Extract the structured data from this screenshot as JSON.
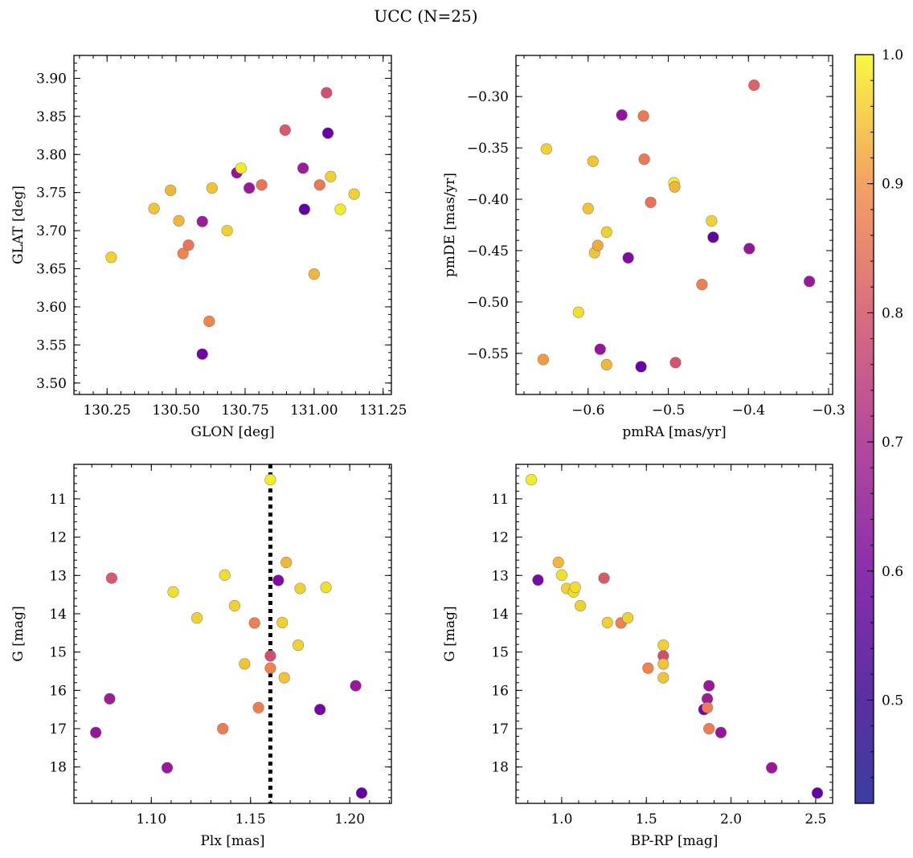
{
  "figure": {
    "title": "UCC (N=25)"
  },
  "colorbar": {
    "min": 0.42,
    "max": 1.0,
    "colormap": "plasma",
    "ticks": [
      0.5,
      0.6,
      0.7,
      0.8,
      0.9,
      1.0
    ],
    "tick_labels": [
      "0.5",
      "0.6",
      "0.7",
      "0.8",
      "0.9",
      "1.0"
    ]
  },
  "chart_data": [
    {
      "type": "scatter",
      "xlabel": "GLON [deg]",
      "ylabel": "GLAT [deg]",
      "xlim": [
        130.13,
        131.28
      ],
      "ylim": [
        3.485,
        3.93
      ],
      "xticks": [
        130.25,
        130.5,
        130.75,
        131.0,
        131.25
      ],
      "xtick_labels": [
        "130.25",
        "130.50",
        "130.75",
        "131.00",
        "131.25"
      ],
      "yticks": [
        3.5,
        3.55,
        3.6,
        3.65,
        3.7,
        3.75,
        3.8,
        3.85,
        3.9
      ],
      "ytick_labels": [
        "3.50",
        "3.55",
        "3.60",
        "3.65",
        "3.70",
        "3.75",
        "3.80",
        "3.85",
        "3.90"
      ],
      "points": [
        {
          "x": 130.265,
          "y": 3.665,
          "c": 0.97
        },
        {
          "x": 130.42,
          "y": 3.729,
          "c": 0.96
        },
        {
          "x": 130.48,
          "y": 3.753,
          "c": 0.95
        },
        {
          "x": 130.51,
          "y": 3.713,
          "c": 0.95
        },
        {
          "x": 130.525,
          "y": 3.67,
          "c": 0.91
        },
        {
          "x": 130.545,
          "y": 3.681,
          "c": 0.87
        },
        {
          "x": 130.595,
          "y": 3.712,
          "c": 0.6
        },
        {
          "x": 130.595,
          "y": 3.538,
          "c": 0.49
        },
        {
          "x": 130.62,
          "y": 3.581,
          "c": 0.91
        },
        {
          "x": 130.63,
          "y": 3.756,
          "c": 0.96
        },
        {
          "x": 130.685,
          "y": 3.7,
          "c": 0.97
        },
        {
          "x": 130.72,
          "y": 3.776,
          "c": 0.57
        },
        {
          "x": 130.735,
          "y": 3.782,
          "c": 0.99
        },
        {
          "x": 130.765,
          "y": 3.756,
          "c": 0.59
        },
        {
          "x": 130.81,
          "y": 3.76,
          "c": 0.87
        },
        {
          "x": 130.895,
          "y": 3.832,
          "c": 0.79
        },
        {
          "x": 130.96,
          "y": 3.782,
          "c": 0.6
        },
        {
          "x": 130.965,
          "y": 3.728,
          "c": 0.45
        },
        {
          "x": 131.0,
          "y": 3.643,
          "c": 0.95
        },
        {
          "x": 131.02,
          "y": 3.76,
          "c": 0.88
        },
        {
          "x": 131.045,
          "y": 3.881,
          "c": 0.76
        },
        {
          "x": 131.05,
          "y": 3.828,
          "c": 0.47
        },
        {
          "x": 131.06,
          "y": 3.771,
          "c": 0.97
        },
        {
          "x": 131.095,
          "y": 3.728,
          "c": 0.99
        },
        {
          "x": 131.145,
          "y": 3.748,
          "c": 0.97
        }
      ]
    },
    {
      "type": "scatter",
      "xlabel": "pmRA [mas/yr]",
      "ylabel": "pmDE [mas/yr]",
      "xlim": [
        -0.69,
        -0.295
      ],
      "ylim": [
        -0.59,
        -0.26
      ],
      "xticks": [
        -0.6,
        -0.5,
        -0.4,
        -0.3
      ],
      "xtick_labels": [
        "−0.6",
        "−0.5",
        "−0.4",
        "−0.3"
      ],
      "yticks": [
        -0.55,
        -0.5,
        -0.45,
        -0.4,
        -0.35,
        -0.3
      ],
      "ytick_labels": [
        "−0.55",
        "−0.50",
        "−0.45",
        "−0.40",
        "−0.35",
        "−0.30"
      ],
      "points": [
        {
          "x": -0.652,
          "y": -0.351,
          "c": 0.97
        },
        {
          "x": -0.656,
          "y": -0.556,
          "c": 0.93
        },
        {
          "x": -0.612,
          "y": -0.51,
          "c": 0.98
        },
        {
          "x": -0.6,
          "y": -0.409,
          "c": 0.96
        },
        {
          "x": -0.594,
          "y": -0.363,
          "c": 0.96
        },
        {
          "x": -0.592,
          "y": -0.452,
          "c": 0.96
        },
        {
          "x": -0.588,
          "y": -0.445,
          "c": 0.94
        },
        {
          "x": -0.585,
          "y": -0.546,
          "c": 0.58
        },
        {
          "x": -0.577,
          "y": -0.432,
          "c": 0.97
        },
        {
          "x": -0.577,
          "y": -0.561,
          "c": 0.95
        },
        {
          "x": -0.55,
          "y": -0.457,
          "c": 0.53
        },
        {
          "x": -0.558,
          "y": -0.318,
          "c": 0.57
        },
        {
          "x": -0.534,
          "y": -0.563,
          "c": 0.46
        },
        {
          "x": -0.531,
          "y": -0.319,
          "c": 0.88
        },
        {
          "x": -0.53,
          "y": -0.361,
          "c": 0.88
        },
        {
          "x": -0.522,
          "y": -0.403,
          "c": 0.86
        },
        {
          "x": -0.493,
          "y": -0.384,
          "c": 0.99
        },
        {
          "x": -0.492,
          "y": -0.388,
          "c": 0.95
        },
        {
          "x": -0.491,
          "y": -0.559,
          "c": 0.77
        },
        {
          "x": -0.458,
          "y": -0.483,
          "c": 0.9
        },
        {
          "x": -0.446,
          "y": -0.421,
          "c": 0.97
        },
        {
          "x": -0.444,
          "y": -0.437,
          "c": 0.45
        },
        {
          "x": -0.399,
          "y": -0.448,
          "c": 0.58
        },
        {
          "x": -0.393,
          "y": -0.289,
          "c": 0.82
        },
        {
          "x": -0.324,
          "y": -0.48,
          "c": 0.59
        }
      ]
    },
    {
      "type": "scatter",
      "xlabel": "Plx [mas]",
      "ylabel": "G [mag]",
      "xlim": [
        1.061,
        1.221
      ],
      "ylim": [
        18.95,
        10.1
      ],
      "y_inverted": true,
      "xticks": [
        1.1,
        1.15,
        1.2
      ],
      "xtick_labels": [
        "1.10",
        "1.15",
        "1.20"
      ],
      "yticks": [
        11,
        12,
        13,
        14,
        15,
        16,
        17,
        18
      ],
      "ytick_labels": [
        "11",
        "12",
        "13",
        "14",
        "15",
        "16",
        "17",
        "18"
      ],
      "vline": {
        "x": 1.16,
        "style": "dotted",
        "color": "#000000"
      },
      "points": [
        {
          "x": 1.072,
          "y": 17.1,
          "c": 0.58
        },
        {
          "x": 1.079,
          "y": 16.22,
          "c": 0.6
        },
        {
          "x": 1.08,
          "y": 13.07,
          "c": 0.79
        },
        {
          "x": 1.108,
          "y": 18.02,
          "c": 0.59
        },
        {
          "x": 1.111,
          "y": 13.43,
          "c": 0.98
        },
        {
          "x": 1.123,
          "y": 14.11,
          "c": 0.97
        },
        {
          "x": 1.136,
          "y": 17.0,
          "c": 0.89
        },
        {
          "x": 1.137,
          "y": 12.99,
          "c": 0.98
        },
        {
          "x": 1.142,
          "y": 13.79,
          "c": 0.97
        },
        {
          "x": 1.147,
          "y": 15.31,
          "c": 0.96
        },
        {
          "x": 1.152,
          "y": 14.24,
          "c": 0.9
        },
        {
          "x": 1.154,
          "y": 16.45,
          "c": 0.89
        },
        {
          "x": 1.16,
          "y": 10.5,
          "c": 0.99
        },
        {
          "x": 1.16,
          "y": 15.1,
          "c": 0.76
        },
        {
          "x": 1.16,
          "y": 15.42,
          "c": 0.91
        },
        {
          "x": 1.164,
          "y": 13.13,
          "c": 0.53
        },
        {
          "x": 1.166,
          "y": 14.23,
          "c": 0.97
        },
        {
          "x": 1.167,
          "y": 15.67,
          "c": 0.96
        },
        {
          "x": 1.168,
          "y": 12.66,
          "c": 0.95
        },
        {
          "x": 1.174,
          "y": 14.82,
          "c": 0.97
        },
        {
          "x": 1.175,
          "y": 13.34,
          "c": 0.97
        },
        {
          "x": 1.185,
          "y": 16.5,
          "c": 0.5
        },
        {
          "x": 1.188,
          "y": 13.31,
          "c": 0.98
        },
        {
          "x": 1.203,
          "y": 15.88,
          "c": 0.59
        },
        {
          "x": 1.206,
          "y": 18.68,
          "c": 0.46
        }
      ]
    },
    {
      "type": "scatter",
      "xlabel": "BP-RP [mag]",
      "ylabel": "G [mag]",
      "xlim": [
        0.73,
        2.6
      ],
      "ylim": [
        18.95,
        10.1
      ],
      "y_inverted": true,
      "xticks": [
        1.0,
        1.5,
        2.0,
        2.5
      ],
      "xtick_labels": [
        "1.0",
        "1.5",
        "2.0",
        "2.5"
      ],
      "yticks": [
        11,
        12,
        13,
        14,
        15,
        16,
        17,
        18
      ],
      "ytick_labels": [
        "11",
        "12",
        "13",
        "14",
        "15",
        "16",
        "17",
        "18"
      ],
      "points": [
        {
          "x": 0.82,
          "y": 10.5,
          "c": 0.99
        },
        {
          "x": 0.86,
          "y": 13.12,
          "c": 0.52
        },
        {
          "x": 0.98,
          "y": 12.66,
          "c": 0.95
        },
        {
          "x": 1.0,
          "y": 12.99,
          "c": 0.98
        },
        {
          "x": 1.03,
          "y": 13.34,
          "c": 0.97
        },
        {
          "x": 1.07,
          "y": 13.43,
          "c": 0.98
        },
        {
          "x": 1.08,
          "y": 13.31,
          "c": 0.98
        },
        {
          "x": 1.11,
          "y": 13.79,
          "c": 0.97
        },
        {
          "x": 1.25,
          "y": 13.07,
          "c": 0.79
        },
        {
          "x": 1.27,
          "y": 14.23,
          "c": 0.97
        },
        {
          "x": 1.35,
          "y": 14.24,
          "c": 0.9
        },
        {
          "x": 1.39,
          "y": 14.11,
          "c": 0.97
        },
        {
          "x": 1.51,
          "y": 15.42,
          "c": 0.91
        },
        {
          "x": 1.6,
          "y": 15.1,
          "c": 0.76
        },
        {
          "x": 1.6,
          "y": 14.82,
          "c": 0.97
        },
        {
          "x": 1.6,
          "y": 15.31,
          "c": 0.96
        },
        {
          "x": 1.6,
          "y": 15.67,
          "c": 0.96
        },
        {
          "x": 1.84,
          "y": 16.5,
          "c": 0.5
        },
        {
          "x": 1.86,
          "y": 16.22,
          "c": 0.6
        },
        {
          "x": 1.86,
          "y": 16.45,
          "c": 0.89
        },
        {
          "x": 1.87,
          "y": 15.88,
          "c": 0.59
        },
        {
          "x": 1.87,
          "y": 17.0,
          "c": 0.89
        },
        {
          "x": 1.94,
          "y": 17.1,
          "c": 0.58
        },
        {
          "x": 2.24,
          "y": 18.02,
          "c": 0.59
        },
        {
          "x": 2.51,
          "y": 18.68,
          "c": 0.46
        }
      ]
    }
  ]
}
